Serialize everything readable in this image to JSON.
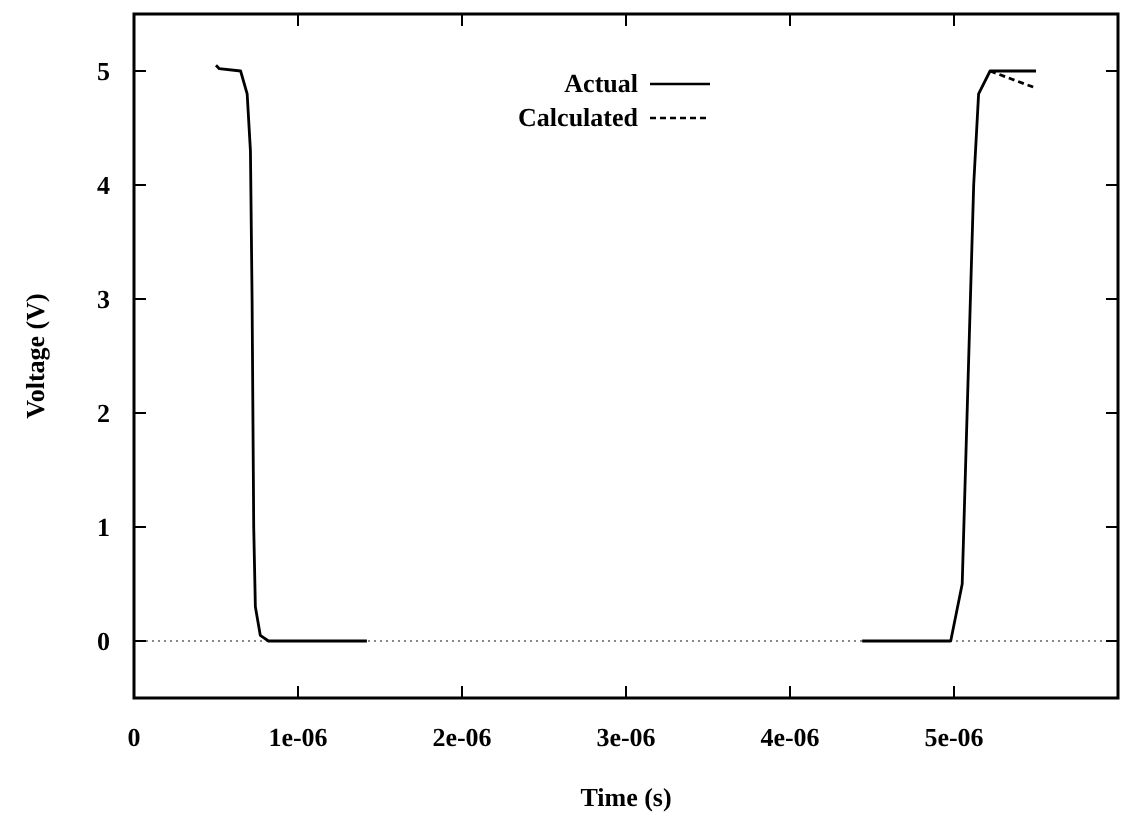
{
  "chart_data": {
    "type": "line",
    "xlabel": "Time (s)",
    "ylabel": "Voltage (V)",
    "xlim": [
      0,
      6e-06
    ],
    "ylim": [
      -0.5,
      5.5
    ],
    "xticks": [
      0,
      {
        "value": 1e-06,
        "label": "1e-06"
      },
      {
        "value": 2e-06,
        "label": "2e-06"
      },
      {
        "value": 3e-06,
        "label": "3e-06"
      },
      {
        "value": 4e-06,
        "label": "4e-06"
      },
      {
        "value": 5e-06,
        "label": "5e-06"
      }
    ],
    "yticks": [
      0,
      1,
      2,
      3,
      4,
      5
    ],
    "x": [
      5e-07,
      5.2e-07,
      6.5e-07,
      6.9e-07,
      7.1e-07,
      7.2e-07,
      7.3e-07,
      7.4e-07,
      7.7e-07,
      8.2e-07,
      1.42e-06,
      3e-06,
      4.44e-06,
      4.98e-06,
      5.05e-06,
      5.08e-06,
      5.12e-06,
      5.15e-06,
      5.22e-06,
      5.5e-06
    ],
    "series": [
      {
        "name": "Actual",
        "color": "#000000",
        "line_style": "solid",
        "values": [
          5.05,
          5.02,
          5.0,
          4.8,
          4.3,
          3,
          1,
          0.3,
          0.05,
          0,
          0,
          null,
          0,
          0,
          0.5,
          2,
          4,
          4.8,
          5.0,
          5.0
        ]
      },
      {
        "name": "Calculated",
        "color": "#000000",
        "line_style": "dashed",
        "x": [
          5.22e-06,
          5.35e-06,
          5.5e-06
        ],
        "values": [
          5.0,
          4.93,
          4.85
        ]
      }
    ],
    "ref_lines": [
      {
        "axis": "y",
        "value": 0,
        "color": "#888888",
        "line_style": "dotted"
      }
    ],
    "legend": "top",
    "grid": false
  }
}
